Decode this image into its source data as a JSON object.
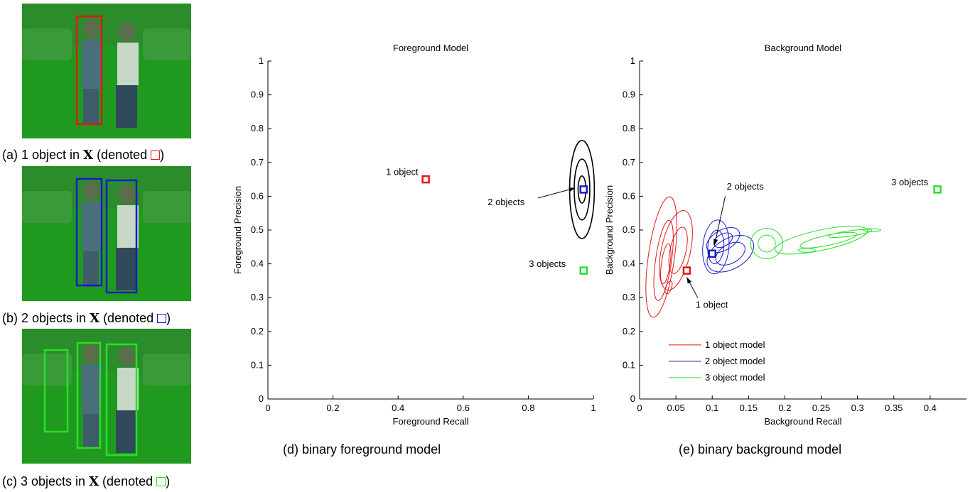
{
  "panels": [
    {
      "caption_prefix": "(a) 1 object in",
      "caption_var": "X",
      "caption_suffix": "(denoted",
      "caption_end": ")",
      "color": "#e01818"
    },
    {
      "caption_prefix": "(b) 2 objects in",
      "caption_var": "X",
      "caption_suffix": "(denoted",
      "caption_end": ")",
      "color": "#1a1acc"
    },
    {
      "caption_prefix": "(c) 3 objects in",
      "caption_var": "X",
      "caption_suffix": "(denoted",
      "caption_end": ")",
      "color": "#28e028"
    }
  ],
  "captions": {
    "d": "(d) binary foreground model",
    "e": "(e) binary background model"
  },
  "chart_data": [
    {
      "type": "scatter",
      "title": "Foreground Model",
      "xlabel": "Foreground Recall",
      "ylabel": "Foreground Precision",
      "xlim": [
        0,
        1
      ],
      "ylim": [
        0,
        1
      ],
      "xticks": [
        "0",
        "0.2",
        "0.4",
        "0.6",
        "0.8",
        "1"
      ],
      "yticks": [
        "0",
        "0.1",
        "0.2",
        "0.3",
        "0.4",
        "0.5",
        "0.6",
        "0.7",
        "0.8",
        "0.9",
        "1"
      ],
      "points": [
        {
          "label": "1 object",
          "x": 0.485,
          "y": 0.65,
          "color": "#e01818"
        },
        {
          "label": "2 objects",
          "x": 0.97,
          "y": 0.62,
          "color": "#1a1acc"
        },
        {
          "label": "3 objects",
          "x": 0.97,
          "y": 0.38,
          "color": "#28e028"
        }
      ],
      "contours": [
        {
          "cx": 0.965,
          "cy": 0.62,
          "rx": [
            0.012,
            0.024,
            0.038
          ],
          "ry": [
            0.04,
            0.09,
            0.145
          ],
          "color": "#000000"
        }
      ]
    },
    {
      "type": "scatter",
      "title": "Background Model",
      "xlabel": "Background Recall",
      "ylabel": "Background Precision",
      "xlim": [
        0,
        0.45
      ],
      "ylim": [
        0,
        1
      ],
      "xticks": [
        "0",
        "0.05",
        "0.1",
        "0.15",
        "0.2",
        "0.25",
        "0.3",
        "0.35",
        "0.4"
      ],
      "yticks": [
        "0",
        "0.1",
        "0.2",
        "0.3",
        "0.4",
        "0.5",
        "0.6",
        "0.7",
        "0.8",
        "0.9",
        "1"
      ],
      "points": [
        {
          "label": "1 object",
          "x": 0.065,
          "y": 0.38,
          "color": "#e01818"
        },
        {
          "label": "2 objects",
          "x": 0.1,
          "y": 0.43,
          "color": "#1a1acc"
        },
        {
          "label": "3 objects",
          "x": 0.41,
          "y": 0.62,
          "color": "#28e028"
        }
      ],
      "legend": [
        {
          "label": "1 object  model",
          "color": "#e01818"
        },
        {
          "label": "2 object model",
          "color": "#1a1acc"
        },
        {
          "label": "3 object model",
          "color": "#28e028"
        }
      ],
      "legend_position": "bottom-left"
    }
  ]
}
